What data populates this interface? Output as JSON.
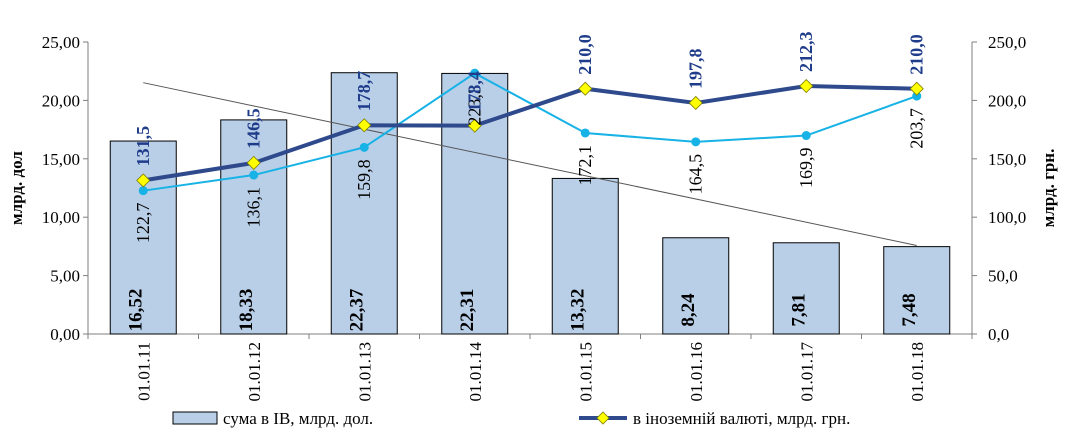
{
  "chart_data": {
    "type": "bar",
    "categories": [
      "01.01.11",
      "01.01.12",
      "01.01.13",
      "01.01.14",
      "01.01.15",
      "01.01.16",
      "01.01.17",
      "01.01.18"
    ],
    "ylabel": "млрд. дол",
    "y2label": "млрд. грн.",
    "ylim": [
      0,
      25
    ],
    "y2lim": [
      0,
      250
    ],
    "yticks": [
      "0,00",
      "5,00",
      "10,00",
      "15,00",
      "20,00",
      "25,00"
    ],
    "y2ticks": [
      "0,0",
      "50,0",
      "100,0",
      "150,0",
      "200,0",
      "250,0"
    ],
    "grid": false,
    "legend_position": "bottom",
    "series": [
      {
        "name": "сума в ІВ, млрд. дол.",
        "type": "bar",
        "axis": "left",
        "color": "#b9cfe8",
        "values": [
          16.52,
          18.33,
          22.37,
          22.31,
          13.32,
          8.24,
          7.81,
          7.48
        ],
        "labels": [
          "16,52",
          "18,33",
          "22,37",
          "22,31",
          "13,32",
          "8,24",
          "7,81",
          "7,48"
        ]
      },
      {
        "name": "в іноземній валюті, млрд. грн.",
        "type": "line",
        "axis": "right",
        "color": "#2e4a8c",
        "marker_color": "#ffff00",
        "values": [
          131.5,
          146.5,
          178.7,
          178.4,
          210.0,
          197.8,
          212.3,
          210.0
        ],
        "labels": [
          "131,5",
          "146,5",
          "178,7",
          "178,4",
          "210,0",
          "197,8",
          "212,3",
          "210,0"
        ]
      },
      {
        "type": "line",
        "axis": "right",
        "color": "#17b2e6",
        "values": [
          122.7,
          136.1,
          159.8,
          223.3,
          172.1,
          164.5,
          169.9,
          203.7
        ],
        "labels": [
          "122,7",
          "136,1",
          "159,8",
          "223,3",
          "172,1",
          "164,5",
          "169,9",
          "203,7"
        ]
      }
    ],
    "trendline": {
      "of_series": 0,
      "color": "#555555"
    }
  }
}
